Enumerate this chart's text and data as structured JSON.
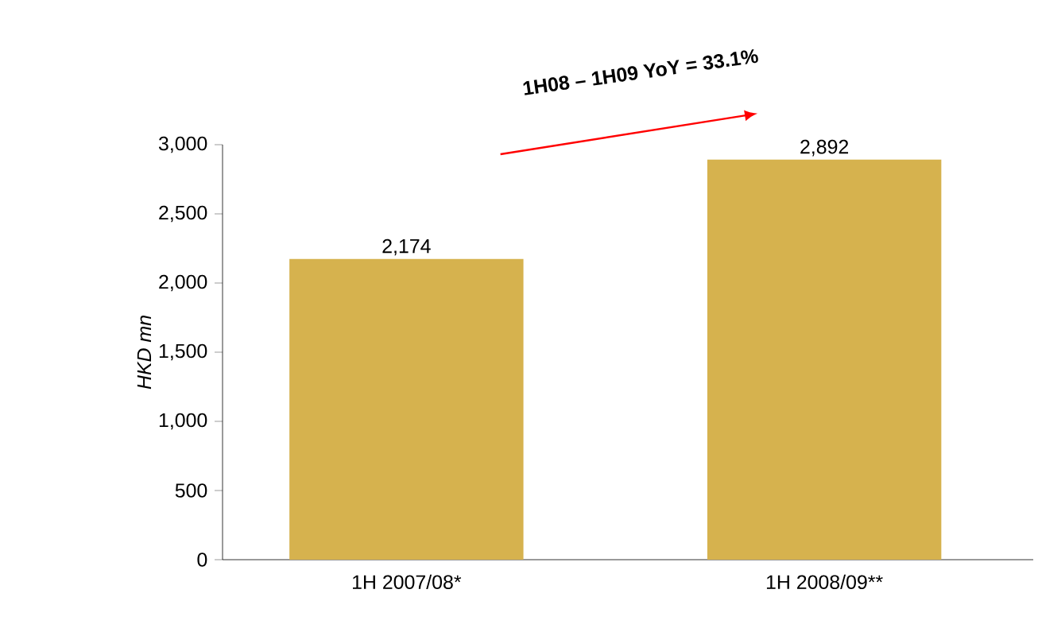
{
  "chart_data": {
    "type": "bar",
    "categories": [
      "1H 2007/08*",
      "1H 2008/09**"
    ],
    "values": [
      2174,
      2892
    ],
    "value_labels": [
      "2,174",
      "2,892"
    ],
    "color": "#d6b24e",
    "ylabel": "HKD mn",
    "ylim": [
      0,
      3000
    ],
    "yticks": [
      {
        "value": 0,
        "label": "0"
      },
      {
        "value": 500,
        "label": "500"
      },
      {
        "value": 1000,
        "label": "1,000"
      },
      {
        "value": 1500,
        "label": "1,500"
      },
      {
        "value": 2000,
        "label": "2,000"
      },
      {
        "value": 2500,
        "label": "2,500"
      },
      {
        "value": 3000,
        "label": "3,000"
      }
    ],
    "annotations": [
      "1H08 – 1H09 YoY = 33.1%"
    ],
    "grid": false
  }
}
